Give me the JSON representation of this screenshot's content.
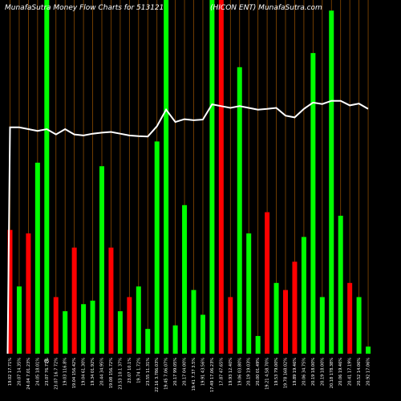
{
  "header": {
    "left": "MunafaSutra  Money Flow  Charts for 513121",
    "right": "(HICON  ENT) MunafaSutra.com"
  },
  "colors": {
    "background": "#000000",
    "grid": "#8a4a00",
    "up": "#00ff00",
    "down": "#ff0000",
    "line": "#ffffff"
  },
  "chart_data": {
    "type": "bar",
    "title": "MunafaSutra  Money Flow  Charts for 513121",
    "subtitle": "(HICON  ENT) MunafaSutra.com",
    "ylim": [
      0,
      100
    ],
    "categories": [
      "17 Fri 2024",
      "10 Fri 2024",
      "03 Fri 2024",
      "27 Fri 2024",
      "20 Fri 2024",
      "13 Fri 2024",
      "06 Fri 2024",
      "30 Fri 2024",
      "23 Fri 2024",
      "16 Fri 2024",
      "09 Fri 2024",
      "02 Fri 2024",
      "26 Fri 2024",
      "19 Fri 2024",
      "12 Fri 2024",
      "05 Fri 2024",
      "29 Fri 2024",
      "22 Fri 2024",
      "15 Fri 2024",
      "08 Fri 2024",
      "01 Fri 2024",
      "24 Fri 2024",
      "17 Fri 2024",
      "10 Fri 2024",
      "03 Fri 2024",
      "27 Fri 2024",
      "20 Fri 2024",
      "13 Fri 2024",
      "06 Fri 2024",
      "29 Fri 2024",
      "22 Fri 2024",
      "15 Fri 2024",
      "08 Fri 2024",
      "01 Fri 2024",
      "24 Fri 2024",
      "17 Fri 2024",
      "10 Fri 2024",
      "03 Fri 2024",
      "27 Fri 2024",
      "20 Fri 2024"
    ],
    "tick_labels": [
      "19.02 17.71%",
      "20.07 14.35%",
      "24.04 7.01.23%",
      "24.05 18.01%",
      "23.07 76.71%",
      "23.07 16.7 72%",
      "19.03 116.8%",
      "19.04 156.42%",
      "19.04 61.30%",
      "19.34 01.92%",
      "20.44 34.95%",
      "19.08 156.72%",
      "23.53 10.1 37%",
      "23.07 10.1%",
      "19.74 1.72%",
      "23.55 11.31%",
      "22.16 3.786.03%",
      "19.45 7.06.07%",
      "20.17 99.05%",
      "20.17 04.00%",
      "19.41 7.37 3.5%",
      "19.91 43.56%",
      "17.49 17.06.23%",
      "17.87 47.65%",
      "19.93 12.40%",
      "19.06 03.80%",
      "20.19 19.03%",
      "20.00 01.49%",
      "19.21 4.58.70%",
      "19.53 79.00%",
      "19.78 168.02%",
      "19.89 19.46%",
      "20.06 34.75%",
      "20.19 18.00%",
      "20.19 18.00%",
      "20.18 178.38%",
      "20.06 19.46%",
      "20.41 17.19%",
      "20.52 14.06%",
      "20.92 17.06%"
    ],
    "extra_label": "05",
    "series": [
      {
        "values": [
          35,
          19,
          34,
          54,
          100,
          16,
          12,
          30,
          14,
          15,
          53,
          30,
          12,
          16,
          19,
          7,
          60,
          100,
          8,
          42,
          18,
          11,
          100,
          100,
          16,
          81,
          34,
          5,
          40,
          20,
          18,
          26,
          33,
          85,
          16,
          97,
          39,
          20,
          16,
          2
        ],
        "colors": [
          "down",
          "up",
          "down",
          "up",
          "up",
          "down",
          "up",
          "down",
          "up",
          "up",
          "up",
          "down",
          "up",
          "down",
          "up",
          "up",
          "up",
          "up",
          "up",
          "up",
          "up",
          "up",
          "up",
          "down",
          "down",
          "up",
          "up",
          "up",
          "down",
          "up",
          "down",
          "down",
          "up",
          "up",
          "up",
          "up",
          "up",
          "down",
          "up",
          "up"
        ]
      },
      {
        "values": [
          64,
          64,
          63.5,
          63,
          63.5,
          62,
          63.5,
          62,
          61.7,
          62.2,
          62.5,
          62.7,
          62.2,
          61.7,
          61.5,
          61.4,
          64.3,
          69,
          65.5,
          66.3,
          66,
          66.2,
          70.5,
          70,
          69.5,
          70,
          69.5,
          69,
          69.2,
          69.5,
          67.3,
          66.8,
          69.2,
          71,
          70.6,
          71.5,
          71.5,
          70.2,
          70.7,
          69.2
        ]
      }
    ]
  }
}
